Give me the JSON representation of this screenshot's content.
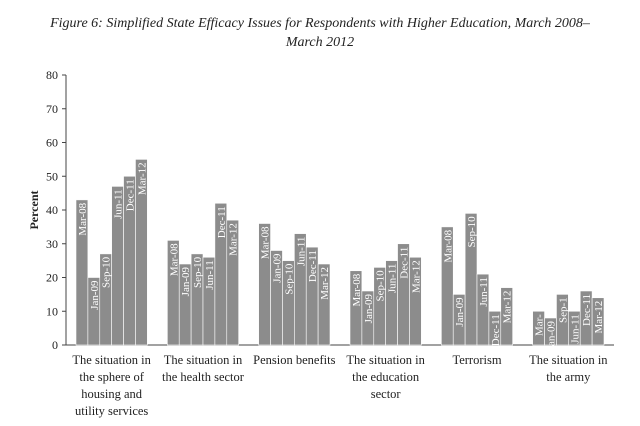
{
  "chart_data": {
    "type": "bar",
    "title": "Figure 6: Simplified State Efficacy Issues for Respondents with Higher Education, March 2008–March 2012",
    "ylabel": "Percent",
    "xlabel": "",
    "ylim": [
      0,
      80
    ],
    "yticks": [
      0,
      10,
      20,
      30,
      40,
      50,
      60,
      70,
      80
    ],
    "grid": false,
    "bar_color": "#8c8c8c",
    "categories": [
      "The situation in the sphere of housing and utility services",
      "The situation in the health sector",
      "Pension benefits",
      "The situation in the education sector",
      "Terrorism",
      "The situation in the army"
    ],
    "category_label_lines": [
      [
        "The situation in",
        "the sphere of",
        "housing and",
        "utility services"
      ],
      [
        "The situation in",
        "the health sector"
      ],
      [
        "Pension benefits"
      ],
      [
        "The situation in",
        "the education",
        "sector"
      ],
      [
        "Terrorism"
      ],
      [
        "The situation in",
        "the army"
      ]
    ],
    "series": [
      {
        "name": "Mar-08",
        "values": [
          43,
          31,
          36,
          22,
          35,
          10
        ]
      },
      {
        "name": "Jan-09",
        "values": [
          20,
          24,
          28,
          16,
          15,
          8
        ]
      },
      {
        "name": "Sep-10",
        "values": [
          27,
          27,
          25,
          23,
          39,
          15
        ]
      },
      {
        "name": "Jun-11",
        "values": [
          47,
          26,
          33,
          25,
          21,
          10
        ]
      },
      {
        "name": "Dec-11",
        "values": [
          50,
          42,
          29,
          30,
          10,
          16
        ]
      },
      {
        "name": "Mar-12",
        "values": [
          55,
          37,
          24,
          26,
          17,
          14
        ]
      }
    ],
    "bar_labels": [
      [
        "Mar-08",
        "Jan-09",
        "Sep-10",
        "Jun-11",
        "Dec-11",
        "Mar-12"
      ],
      [
        "Mar-08",
        "Jan-09",
        "Sep-10",
        "Jun-11",
        "Dec-11",
        "Mar-12"
      ],
      [
        "Mar-08",
        "Jan-09",
        "Sep-10",
        "Jun-11",
        "Dec-11",
        "Mar-12"
      ],
      [
        "Mar-08",
        "Jan-09",
        "Sep-10",
        "Jun-11",
        "Dec-11",
        "Mar-12"
      ],
      [
        "Mar-08",
        "Jan-09",
        "Sep-10",
        "Jun-11",
        "Dec-11",
        "Mar-12"
      ],
      [
        "Mar-",
        "Jan-09",
        "Sep-1",
        "Jun-11",
        "Dec-11",
        "Mar-12"
      ]
    ]
  }
}
